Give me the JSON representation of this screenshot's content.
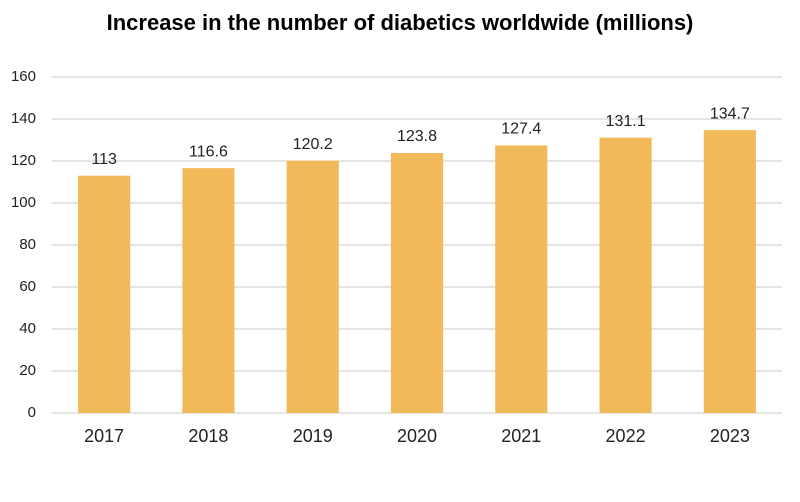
{
  "chart_data": {
    "type": "bar",
    "title": "Increase in the number of diabetics worldwide (millions)",
    "categories": [
      "2017",
      "2018",
      "2019",
      "2020",
      "2021",
      "2022",
      "2023"
    ],
    "values": [
      113,
      116.6,
      120.2,
      123.8,
      127.4,
      131.1,
      134.7
    ],
    "color": "#f2b95a",
    "ylim": [
      0,
      160
    ],
    "yticks": [
      0,
      20,
      40,
      60,
      80,
      100,
      120,
      140,
      160
    ],
    "grid": true,
    "data_labels": true
  }
}
